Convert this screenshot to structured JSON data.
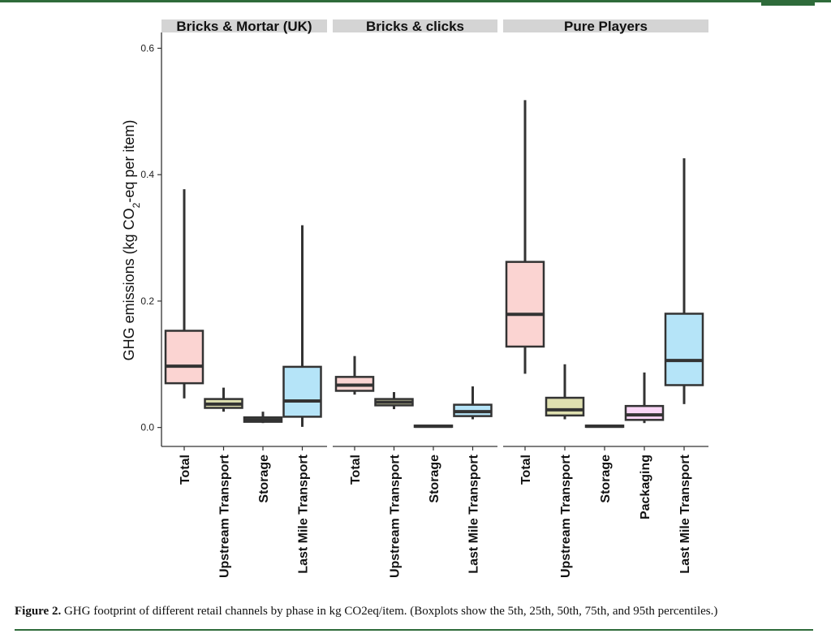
{
  "caption": {
    "label": "Figure 2.",
    "text": " GHG footprint of different retail channels by phase in kg CO2eq/item. (Boxplots show the 5th, 25th, 50th, 75th, and 95th percentiles.)"
  },
  "chart_data": {
    "type": "boxplot",
    "ylabel_prefix": "GHG emissions (kg CO",
    "ylabel_sub": "2",
    "ylabel_suffix": "-eq per item)",
    "ylim": [
      -0.03,
      0.625
    ],
    "yticks": [
      0.0,
      0.2,
      0.4,
      0.6
    ],
    "ytick_labels": [
      "0.0",
      "0.2",
      "0.4",
      "0.6"
    ],
    "grid": false,
    "colors": {
      "Total": "#fbd4d2",
      "Upstream Transport": "#dfe0b0",
      "Storage": "#c8efe0",
      "Packaging": "#f9d6f6",
      "Last Mile Transport": "#b5e4f8",
      "outline": "#333333",
      "facet_strip": "#d4d4d4"
    },
    "facets": [
      {
        "name": "Bricks & Mortar (UK)",
        "boxes": [
          {
            "category": "Total",
            "p5": 0.046,
            "p25": 0.07,
            "p50": 0.097,
            "p75": 0.153,
            "p95": 0.377
          },
          {
            "category": "Upstream Transport",
            "p5": 0.025,
            "p25": 0.031,
            "p50": 0.037,
            "p75": 0.045,
            "p95": 0.063
          },
          {
            "category": "Storage",
            "p5": 0.007,
            "p25": 0.009,
            "p50": 0.012,
            "p75": 0.016,
            "p95": 0.025
          },
          {
            "category": "Last Mile Transport",
            "p5": 0.001,
            "p25": 0.017,
            "p50": 0.042,
            "p75": 0.096,
            "p95": 0.32
          }
        ]
      },
      {
        "name": "Bricks & clicks",
        "boxes": [
          {
            "category": "Total",
            "p5": 0.052,
            "p25": 0.058,
            "p50": 0.067,
            "p75": 0.08,
            "p95": 0.113
          },
          {
            "category": "Upstream Transport",
            "p5": 0.029,
            "p25": 0.035,
            "p50": 0.04,
            "p75": 0.045,
            "p95": 0.056
          },
          {
            "category": "Storage",
            "p5": 0.0,
            "p25": 0.001,
            "p50": 0.002,
            "p75": 0.003,
            "p95": 0.004
          },
          {
            "category": "Last Mile Transport",
            "p5": 0.013,
            "p25": 0.018,
            "p50": 0.025,
            "p75": 0.036,
            "p95": 0.065
          }
        ]
      },
      {
        "name": "Pure Players",
        "boxes": [
          {
            "category": "Total",
            "p5": 0.085,
            "p25": 0.128,
            "p50": 0.179,
            "p75": 0.262,
            "p95": 0.518
          },
          {
            "category": "Upstream Transport",
            "p5": 0.013,
            "p25": 0.019,
            "p50": 0.028,
            "p75": 0.047,
            "p95": 0.1
          },
          {
            "category": "Storage",
            "p5": 0.0,
            "p25": 0.001,
            "p50": 0.002,
            "p75": 0.003,
            "p95": 0.004
          },
          {
            "category": "Packaging",
            "p5": 0.007,
            "p25": 0.012,
            "p50": 0.02,
            "p75": 0.034,
            "p95": 0.087
          },
          {
            "category": "Last Mile Transport",
            "p5": 0.037,
            "p25": 0.067,
            "p50": 0.106,
            "p75": 0.18,
            "p95": 0.426
          }
        ]
      }
    ]
  }
}
